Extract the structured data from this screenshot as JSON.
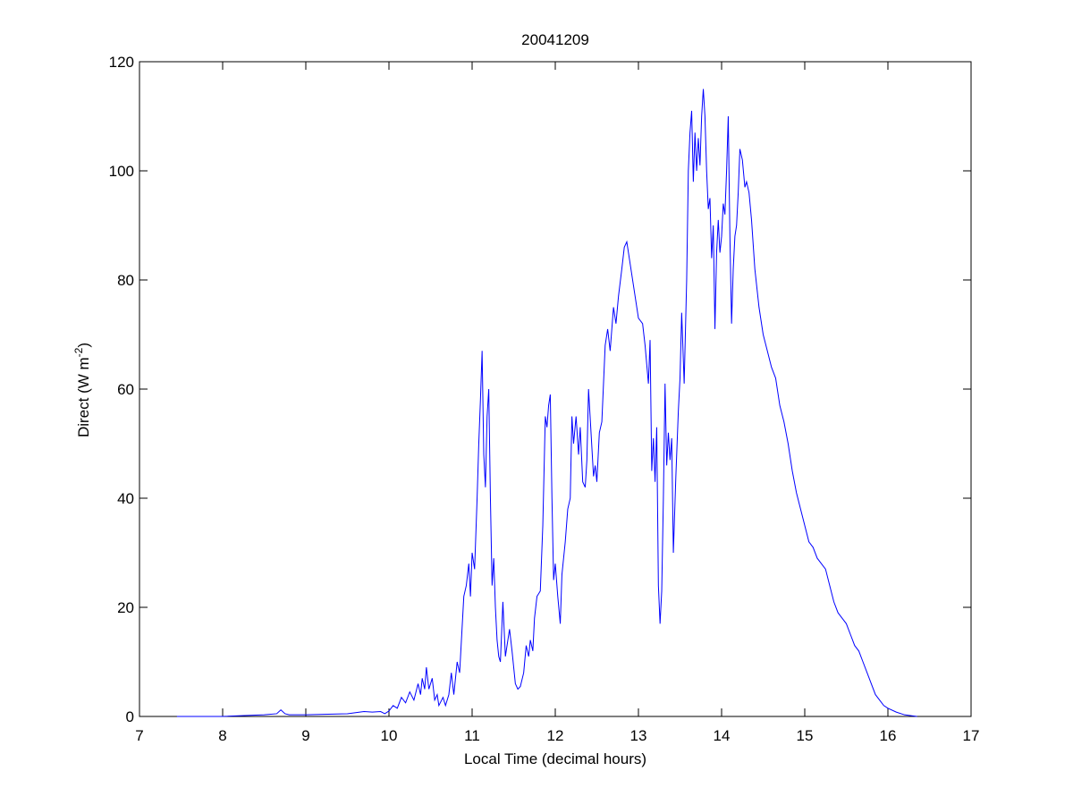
{
  "chart_data": {
    "type": "line",
    "title": "20041209",
    "xlabel": "Local Time (decimal hours)",
    "ylabel": {
      "text": "Direct (W m",
      "superscript": "-2",
      "suffix": ")"
    },
    "xlim": [
      7,
      17
    ],
    "xticks": [
      7,
      8,
      9,
      10,
      11,
      12,
      13,
      14,
      15,
      16,
      17
    ],
    "ylim": [
      0,
      120
    ],
    "yticks": [
      0,
      20,
      40,
      60,
      80,
      100,
      120
    ],
    "grid": false,
    "series": [
      {
        "color": "#0000ff",
        "x": [
          7.45,
          8.0,
          8.5,
          8.65,
          8.7,
          8.75,
          8.8,
          9.0,
          9.5,
          9.7,
          9.8,
          9.9,
          9.95,
          10.0,
          10.05,
          10.1,
          10.15,
          10.2,
          10.25,
          10.3,
          10.35,
          10.38,
          10.4,
          10.43,
          10.45,
          10.48,
          10.52,
          10.55,
          10.58,
          10.6,
          10.65,
          10.68,
          10.72,
          10.75,
          10.78,
          10.82,
          10.85,
          10.9,
          10.93,
          10.96,
          10.98,
          11.0,
          11.03,
          11.06,
          11.08,
          11.1,
          11.12,
          11.14,
          11.16,
          11.18,
          11.2,
          11.22,
          11.24,
          11.26,
          11.28,
          11.3,
          11.32,
          11.34,
          11.37,
          11.4,
          11.42,
          11.45,
          11.48,
          11.52,
          11.55,
          11.58,
          11.62,
          11.65,
          11.68,
          11.7,
          11.73,
          11.75,
          11.78,
          11.82,
          11.85,
          11.88,
          11.9,
          11.92,
          11.94,
          11.96,
          11.98,
          12.0,
          12.03,
          12.06,
          12.08,
          12.12,
          12.15,
          12.18,
          12.2,
          12.22,
          12.25,
          12.28,
          12.3,
          12.33,
          12.36,
          12.38,
          12.4,
          12.43,
          12.46,
          12.48,
          12.5,
          12.53,
          12.56,
          12.6,
          12.63,
          12.66,
          12.7,
          12.73,
          12.76,
          12.8,
          12.83,
          12.86,
          12.9,
          12.95,
          13.0,
          13.05,
          13.08,
          13.12,
          13.14,
          13.16,
          13.18,
          13.2,
          13.22,
          13.24,
          13.26,
          13.28,
          13.3,
          13.32,
          13.34,
          13.36,
          13.38,
          13.4,
          13.42,
          13.45,
          13.48,
          13.5,
          13.52,
          13.55,
          13.58,
          13.6,
          13.62,
          13.64,
          13.66,
          13.68,
          13.7,
          13.72,
          13.74,
          13.76,
          13.78,
          13.8,
          13.82,
          13.84,
          13.86,
          13.88,
          13.9,
          13.92,
          13.94,
          13.96,
          13.98,
          14.0,
          14.02,
          14.04,
          14.06,
          14.08,
          14.1,
          14.12,
          14.14,
          14.16,
          14.18,
          14.2,
          14.22,
          14.25,
          14.28,
          14.3,
          14.33,
          14.36,
          14.4,
          14.45,
          14.5,
          14.55,
          14.6,
          14.65,
          14.7,
          14.75,
          14.8,
          14.85,
          14.9,
          14.95,
          15.0,
          15.05,
          15.1,
          15.15,
          15.2,
          15.25,
          15.3,
          15.35,
          15.4,
          15.45,
          15.5,
          15.55,
          15.6,
          15.65,
          15.7,
          15.75,
          15.8,
          15.85,
          15.9,
          15.95,
          16.0,
          16.1,
          16.2,
          16.35
        ],
        "values": [
          0,
          0,
          0.3,
          0.5,
          1.2,
          0.5,
          0.3,
          0.3,
          0.5,
          0.9,
          0.8,
          0.9,
          0.5,
          1.0,
          2,
          1.5,
          3.5,
          2.5,
          4.5,
          3,
          6,
          4,
          7,
          5,
          9,
          5,
          7,
          3,
          4,
          2,
          3.5,
          2,
          4,
          8,
          4,
          10,
          8,
          22,
          24,
          28,
          22,
          30,
          27,
          40,
          50,
          58,
          67,
          48,
          42,
          55,
          60,
          40,
          24,
          29,
          20,
          14,
          11,
          10,
          21,
          11,
          13,
          16,
          12,
          6,
          5,
          5.5,
          8,
          13,
          11,
          14,
          12,
          18,
          22,
          23,
          35,
          55,
          53,
          57,
          59,
          40,
          25,
          28,
          22,
          17,
          26,
          32,
          38,
          40,
          55,
          50,
          55,
          48,
          53,
          43,
          42,
          47,
          60,
          52,
          44,
          46,
          43,
          52,
          54,
          68,
          71,
          67,
          75,
          72,
          77,
          82,
          86,
          87,
          83,
          78,
          73,
          72,
          68,
          61,
          69,
          45,
          51,
          43,
          53,
          24,
          17,
          23,
          40,
          61,
          46,
          52,
          47,
          51,
          30,
          44,
          56,
          62,
          74,
          61,
          80,
          100,
          107,
          111,
          98,
          107,
          100,
          106,
          101,
          110,
          115,
          110,
          100,
          93,
          95,
          84,
          90,
          71,
          85,
          91,
          85,
          88,
          94,
          92,
          100,
          110,
          88,
          72,
          82,
          88,
          90,
          96,
          104,
          102,
          97,
          98,
          96,
          91,
          82,
          75,
          70,
          67,
          64,
          62,
          57,
          54,
          50,
          45,
          41,
          38,
          35,
          32,
          31,
          29,
          28,
          27,
          24,
          21,
          19,
          18,
          17,
          15,
          13,
          12,
          10,
          8,
          6,
          4,
          3,
          2,
          1.5,
          0.8,
          0.3,
          0
        ]
      }
    ]
  }
}
